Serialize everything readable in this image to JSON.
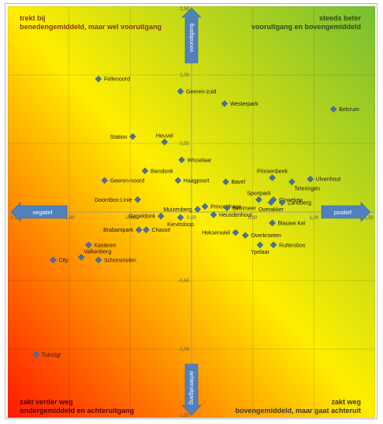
{
  "quadrants": {
    "top_left": [
      "trekt bij",
      "benedengemiddeld, maar wel vooruitgang"
    ],
    "top_right": [
      "steeds beter",
      "vooruitgang en bovengemiddeld"
    ],
    "bottom_left": [
      "zakt verder weg",
      "ondergemiddeld en achteruitgang"
    ],
    "bottom_right": [
      "zakt weg",
      "bovengemiddeld, maar gaat achteruit"
    ]
  },
  "arrows": {
    "up": "vooruitgang",
    "down": "achteruitgang",
    "left": "negatief",
    "right": "positief"
  },
  "colors": {
    "marker": "#4a6fa5",
    "arrow": "#4f81bd",
    "gradient_red": "#ff1a00",
    "gradient_yellow": "#ffee00",
    "gradient_green": "#77bf33"
  },
  "chart_data": {
    "type": "scatter",
    "xlim": [
      -1.5,
      1.5
    ],
    "ylim": [
      -1.5,
      1.5
    ],
    "x_ticks": [
      "-1,50",
      "-1,00",
      "-0,50",
      "0,00",
      "0,50",
      "1,00",
      "1,50"
    ],
    "y_ticks": [
      "1,50",
      "1,00",
      "0,50",
      "0,00",
      "-0,50",
      "-1,00",
      "-1,50"
    ],
    "grid": true,
    "points": [
      {
        "name": "Fellenoord",
        "x": -0.76,
        "y": 0.97,
        "label_pos": "right"
      },
      {
        "name": "Geeren-zuid",
        "x": -0.09,
        "y": 0.88,
        "label_pos": "right"
      },
      {
        "name": "Westerpark",
        "x": 0.27,
        "y": 0.79,
        "label_pos": "right"
      },
      {
        "name": "Belcrum",
        "x": 1.16,
        "y": 0.75,
        "label_pos": "right"
      },
      {
        "name": "Heuvel",
        "x": -0.22,
        "y": 0.51,
        "label_pos": "above"
      },
      {
        "name": "Station",
        "x": -0.48,
        "y": 0.55,
        "label_pos": "left"
      },
      {
        "name": "Wisselaar",
        "x": -0.08,
        "y": 0.38,
        "label_pos": "right"
      },
      {
        "name": "Biesdonk",
        "x": -0.38,
        "y": 0.3,
        "label_pos": "right"
      },
      {
        "name": "Geeren-noord",
        "x": -0.71,
        "y": 0.23,
        "label_pos": "right"
      },
      {
        "name": "Haagpoort",
        "x": -0.11,
        "y": 0.23,
        "label_pos": "right"
      },
      {
        "name": "Bavel",
        "x": 0.28,
        "y": 0.22,
        "label_pos": "right"
      },
      {
        "name": "Prinsenbeek",
        "x": 0.66,
        "y": 0.25,
        "label_pos": "above"
      },
      {
        "name": "Ulvenhout",
        "x": 0.97,
        "y": 0.24,
        "label_pos": "right"
      },
      {
        "name": "Teteringen",
        "x": 0.82,
        "y": 0.22,
        "label_pos": "below-right"
      },
      {
        "name": "Sportpark",
        "x": 0.55,
        "y": 0.09,
        "label_pos": "above"
      },
      {
        "name": "Ginneken",
        "x": 0.67,
        "y": 0.09,
        "label_pos": "right"
      },
      {
        "name": "Zandberg",
        "x": 0.74,
        "y": 0.07,
        "label_pos": "right"
      },
      {
        "name": "Overakker",
        "x": 0.65,
        "y": 0.07,
        "label_pos": "below"
      },
      {
        "name": "Doornbos-Linie",
        "x": -0.44,
        "y": 0.09,
        "label_pos": "left"
      },
      {
        "name": "Princenhage",
        "x": 0.11,
        "y": 0.04,
        "label_pos": "right"
      },
      {
        "name": "Muizenberg",
        "x": 0.05,
        "y": 0.02,
        "label_pos": "left"
      },
      {
        "name": "Boeimeer",
        "x": 0.29,
        "y": 0.03,
        "label_pos": "right"
      },
      {
        "name": "Gageldonk",
        "x": -0.25,
        "y": -0.03,
        "label_pos": "left"
      },
      {
        "name": "Kievitsloop",
        "x": -0.09,
        "y": -0.04,
        "label_pos": "below"
      },
      {
        "name": "Heusdenhout",
        "x": 0.18,
        "y": -0.02,
        "label_pos": "right"
      },
      {
        "name": "Blauwe Kei",
        "x": 0.66,
        "y": -0.08,
        "label_pos": "right"
      },
      {
        "name": "Brabantpark",
        "x": -0.43,
        "y": -0.13,
        "label_pos": "left"
      },
      {
        "name": "Chassé",
        "x": -0.37,
        "y": -0.13,
        "label_pos": "right"
      },
      {
        "name": "Heksenwiel",
        "x": 0.36,
        "y": -0.15,
        "label_pos": "left"
      },
      {
        "name": "Overkroeten",
        "x": 0.44,
        "y": -0.17,
        "label_pos": "right"
      },
      {
        "name": "Ruitersbos",
        "x": 0.67,
        "y": -0.24,
        "label_pos": "right"
      },
      {
        "name": "Ypelaar",
        "x": 0.56,
        "y": -0.24,
        "label_pos": "below"
      },
      {
        "name": "Kasteren",
        "x": -0.84,
        "y": -0.24,
        "label_pos": "right"
      },
      {
        "name": "Valkenberg",
        "x": -0.9,
        "y": -0.33,
        "label_pos": "above-right"
      },
      {
        "name": "City",
        "x": -1.13,
        "y": -0.35,
        "label_pos": "right"
      },
      {
        "name": "Schorsmolen",
        "x": -0.76,
        "y": -0.35,
        "label_pos": "right"
      },
      {
        "name": "Tuinzigt",
        "x": -1.27,
        "y": -1.04,
        "label_pos": "right"
      }
    ]
  }
}
